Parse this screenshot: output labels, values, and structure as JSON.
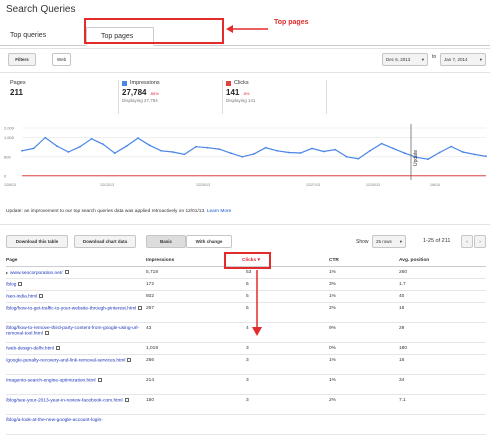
{
  "title": "Search Queries",
  "tabs": [
    {
      "label": "Top queries"
    },
    {
      "label": "Top pages"
    }
  ],
  "annotations": {
    "top_pages": "Top pages"
  },
  "toolbar": {
    "filters": "Filters",
    "web": "Web",
    "date_from": "Dec 6, 2013",
    "to": "to",
    "date_to": "Jan 7, 2014"
  },
  "metrics": {
    "pages": {
      "label": "Pages",
      "value": "211"
    },
    "impressions": {
      "label": "Impressions",
      "value": "27,784",
      "change": "-55%",
      "sub": "Displaying 27,784",
      "color": "#4a86e8"
    },
    "clicks": {
      "label": "Clicks",
      "value": "141",
      "change": "-5%",
      "sub": "Displaying 141",
      "color": "#e0433f"
    }
  },
  "chart_data": {
    "type": "line",
    "yticks": [
      "2,000",
      "1,600",
      "800",
      "0"
    ],
    "ylim": [
      0,
      2000
    ],
    "xticks": [
      "12/6/13",
      "12/13/13",
      "12/20/13",
      "12/27/13",
      "12/30/13",
      "1/6/14"
    ],
    "annotation": "Update",
    "series": [
      {
        "values": [
          1050,
          1150,
          1600,
          1250,
          1000,
          1220,
          1550,
          1320,
          950,
          1240,
          1580,
          1280,
          1050,
          1000,
          900,
          1220,
          1180,
          1120,
          950,
          800,
          920,
          1180,
          1050,
          980,
          960,
          1150,
          1020,
          1100,
          800,
          720,
          1050,
          1350,
          1150,
          950,
          780,
          700,
          980,
          1230,
          1000,
          900,
          820
        ]
      },
      {
        "values": [
          10,
          12,
          8,
          10,
          12,
          10,
          8,
          10,
          9,
          10,
          12,
          10,
          9,
          10,
          8,
          10,
          10,
          9,
          10,
          8,
          9,
          10,
          10,
          9,
          10,
          10,
          9,
          10,
          8,
          9,
          10,
          11,
          10,
          9,
          8,
          9,
          10,
          11,
          10,
          9,
          8
        ]
      }
    ]
  },
  "update_note": {
    "text": "Update: an improvement to our top search queries data was applied retroactively on 12/01/13.",
    "link": "Learn More"
  },
  "controls": {
    "download_table": "Download this table",
    "download_chart": "Download chart data",
    "basic": "Basic",
    "with_change": "With change",
    "show": "Show",
    "rows": "25 rows",
    "range": "1-25 of 211"
  },
  "table": {
    "headers": {
      "page": "Page",
      "impressions": "Impressions",
      "clicks": "Clicks",
      "ctr": "CTR",
      "avg_position": "Avg. position"
    },
    "rows": [
      {
        "page": "www.seocorporation.net/",
        "impressions": "5,718",
        "clicks": "53",
        "ctr": "1%",
        "pos": "260"
      },
      {
        "page": "/blog",
        "impressions": "172",
        "clicks": "6",
        "ctr": "3%",
        "pos": "1.7"
      },
      {
        "page": "/seo-india.html",
        "impressions": "802",
        "clicks": "5",
        "ctr": "1%",
        "pos": "40"
      },
      {
        "page": "/blog/how-to-get-traffic-to-your-website-through-pinterest.html",
        "impressions": "267",
        "clicks": "5",
        "ctr": "2%",
        "pos": "16"
      },
      {
        "page": "/blog/how-to-remove-third-party-content-from-google-using-url-removal-tool.html",
        "impressions": "43",
        "clicks": "4",
        "ctr": "9%",
        "pos": "29"
      },
      {
        "page": "/web-design-delhi.html",
        "impressions": "1,019",
        "clicks": "3",
        "ctr": "0%",
        "pos": "180"
      },
      {
        "page": "/google-penalty-recovery-and-link-removal-services.html",
        "impressions": "256",
        "clicks": "3",
        "ctr": "1%",
        "pos": "16"
      },
      {
        "page": "/magento-search-engine-optimization.html",
        "impressions": "214",
        "clicks": "3",
        "ctr": "1%",
        "pos": "34"
      },
      {
        "page": "/blog/see-your-2013-year-in-review-facebook-com.html",
        "impressions": "150",
        "clicks": "3",
        "ctr": "2%",
        "pos": "7.1"
      },
      {
        "page": "/blog/a-look-at-the-new-google-account-login-",
        "impressions": "",
        "clicks": "",
        "ctr": "",
        "pos": ""
      }
    ]
  }
}
